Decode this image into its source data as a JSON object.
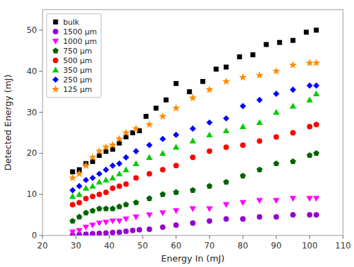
{
  "chart_data": {
    "type": "scatter",
    "xlabel": "Energy In (mJ)",
    "ylabel": "Detected Energy (mJ)",
    "xlim": [
      20,
      110
    ],
    "ylim": [
      0,
      55
    ],
    "xticks": [
      20,
      30,
      40,
      50,
      60,
      70,
      80,
      90,
      100,
      110
    ],
    "yticks": [
      0,
      10,
      20,
      30,
      40,
      50
    ],
    "grid": false,
    "legend": "upper left",
    "series": [
      {
        "name": "bulk",
        "color": "#000000",
        "marker": "square",
        "x": [
          29,
          31,
          33,
          35,
          37,
          39,
          41,
          43,
          45,
          47,
          49,
          51,
          54,
          57,
          60,
          64,
          68,
          72,
          75,
          79,
          83,
          87,
          91,
          95,
          99,
          102
        ],
        "values": [
          15.5,
          16.0,
          17.5,
          18.0,
          19.5,
          20.5,
          21.0,
          22.5,
          24.0,
          25.0,
          25.5,
          29.0,
          31.0,
          33.0,
          37.0,
          35.0,
          37.5,
          40.5,
          41.0,
          43.5,
          44.0,
          46.5,
          47.0,
          47.5,
          49.5,
          50.0
        ]
      },
      {
        "name": "1500 μm",
        "color": "#9400D3",
        "marker": "circle",
        "x": [
          29,
          31,
          33,
          35,
          37,
          39,
          41,
          43,
          45,
          47,
          49,
          52,
          56,
          60,
          65,
          70,
          75,
          80,
          85,
          90,
          95,
          100,
          102
        ],
        "values": [
          0.1,
          0.2,
          0.3,
          0.4,
          0.5,
          0.6,
          0.7,
          0.8,
          1.0,
          1.2,
          1.4,
          1.5,
          2.0,
          2.5,
          3.0,
          3.5,
          4.0,
          4.0,
          4.5,
          4.5,
          5.0,
          5.0,
          5.0
        ]
      },
      {
        "name": "1000 μm",
        "color": "#FF00FF",
        "marker": "triangle-down",
        "x": [
          29,
          31,
          33,
          35,
          37,
          39,
          41,
          43,
          45,
          48,
          52,
          56,
          60,
          65,
          70,
          75,
          80,
          85,
          90,
          95,
          100,
          102
        ],
        "values": [
          0.8,
          1.2,
          2.0,
          2.5,
          3.0,
          3.2,
          3.5,
          3.5,
          4.0,
          4.5,
          5.0,
          5.5,
          6.0,
          6.5,
          6.5,
          7.5,
          8.0,
          8.5,
          8.5,
          9.0,
          9.0,
          9.0
        ]
      },
      {
        "name": "750 μm",
        "color": "#006400",
        "marker": "pentagon",
        "x": [
          29,
          31,
          33,
          35,
          37,
          39,
          41,
          43,
          45,
          48,
          52,
          56,
          60,
          65,
          70,
          75,
          80,
          85,
          90,
          95,
          100,
          102
        ],
        "values": [
          3.5,
          4.5,
          5.5,
          6.0,
          6.5,
          6.5,
          6.5,
          7.0,
          7.5,
          8.0,
          9.0,
          10.0,
          10.5,
          11.0,
          12.0,
          13.0,
          14.5,
          16.0,
          17.5,
          18.0,
          19.5,
          20.0
        ]
      },
      {
        "name": "500 μm",
        "color": "#FF0000",
        "marker": "circle",
        "x": [
          29,
          31,
          33,
          35,
          37,
          39,
          41,
          43,
          45,
          48,
          52,
          56,
          60,
          65,
          70,
          75,
          80,
          85,
          90,
          95,
          100,
          102
        ],
        "values": [
          7.5,
          8.0,
          9.0,
          9.5,
          10.0,
          10.5,
          11.5,
          12.0,
          12.5,
          14.0,
          15.0,
          16.0,
          17.0,
          19.0,
          20.5,
          21.5,
          22.0,
          23.0,
          24.0,
          25.0,
          26.5,
          27.0
        ]
      },
      {
        "name": "350 μm",
        "color": "#00CC00",
        "marker": "triangle-up",
        "x": [
          29,
          31,
          33,
          35,
          37,
          39,
          41,
          43,
          45,
          48,
          52,
          56,
          60,
          65,
          70,
          75,
          80,
          85,
          90,
          95,
          100,
          102
        ],
        "values": [
          9.5,
          10.0,
          11.5,
          12.0,
          13.0,
          13.5,
          14.0,
          15.0,
          16.0,
          17.5,
          19.0,
          20.0,
          21.5,
          23.0,
          24.5,
          25.5,
          26.5,
          27.5,
          30.0,
          31.5,
          33.0,
          34.5
        ]
      },
      {
        "name": "250 μm",
        "color": "#0000FF",
        "marker": "diamond",
        "x": [
          29,
          31,
          33,
          35,
          37,
          39,
          41,
          43,
          45,
          48,
          52,
          56,
          60,
          65,
          70,
          75,
          80,
          85,
          90,
          95,
          100,
          102
        ],
        "values": [
          11.0,
          12.0,
          13.5,
          14.0,
          15.0,
          16.0,
          17.0,
          17.5,
          19.0,
          20.5,
          22.0,
          23.5,
          24.5,
          26.0,
          27.5,
          28.5,
          31.5,
          33.0,
          34.5,
          35.5,
          36.5,
          36.5
        ]
      },
      {
        "name": "125 μm",
        "color": "#FF8C00",
        "marker": "star",
        "x": [
          29,
          31,
          33,
          35,
          37,
          39,
          41,
          43,
          45,
          48,
          52,
          56,
          60,
          65,
          70,
          75,
          80,
          85,
          90,
          95,
          100,
          102
        ],
        "values": [
          14.0,
          15.0,
          17.0,
          19.0,
          20.5,
          21.5,
          22.0,
          23.5,
          25.0,
          26.0,
          27.0,
          29.0,
          31.0,
          33.5,
          35.5,
          37.5,
          38.5,
          39.0,
          40.0,
          41.5,
          42.0,
          42.0
        ]
      }
    ]
  }
}
